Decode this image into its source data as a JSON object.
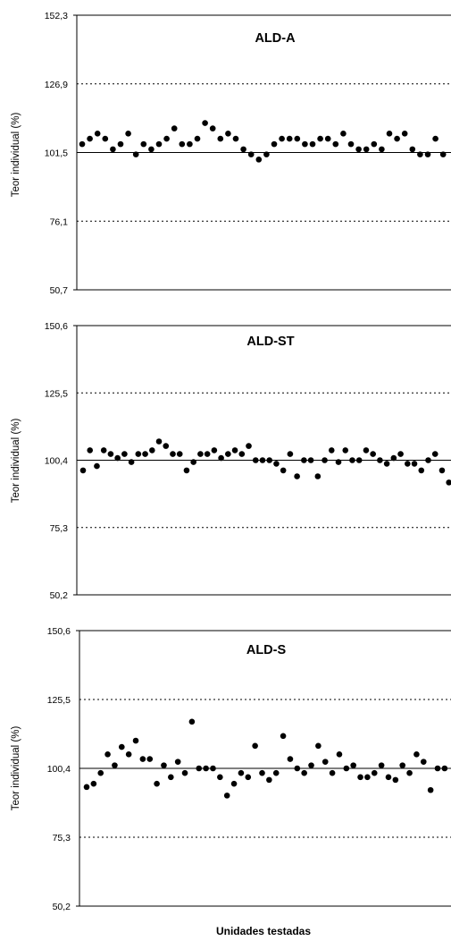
{
  "x_axis_label": "Unidades testadas",
  "chart_data": [
    {
      "type": "scatter",
      "title": "ALD-A",
      "ylabel": "Teor individual (%)",
      "yticks": [
        "152,3",
        "126,9",
        "101,5",
        "76,1",
        "50,7"
      ],
      "ylim": [
        50.7,
        152.3
      ],
      "reference_line": 101.5,
      "dotted_lines": [
        126.9,
        76.1
      ],
      "grid": false,
      "values": [
        104.6,
        106.6,
        108.5,
        106.6,
        102.7,
        104.6,
        108.5,
        100.8,
        104.6,
        102.7,
        104.6,
        106.6,
        110.4,
        104.6,
        104.6,
        106.6,
        112.4,
        110.4,
        106.6,
        108.5,
        106.6,
        102.7,
        100.8,
        98.9,
        100.8,
        104.6,
        106.6,
        106.6,
        106.6,
        104.6,
        104.6,
        106.6,
        106.6,
        104.6,
        108.5,
        104.6,
        102.7,
        102.7,
        104.6,
        102.7,
        108.5,
        106.6,
        108.5,
        102.7,
        100.8,
        100.8,
        106.6,
        100.8
      ]
    },
    {
      "type": "scatter",
      "title": "ALD-ST",
      "ylabel": "Teor individual (%)",
      "yticks": [
        "150,6",
        "125,5",
        "100,4",
        "75,3",
        "50,2"
      ],
      "ylim": [
        50.2,
        150.6
      ],
      "reference_line": 100.4,
      "dotted_lines": [
        125.5,
        75.3
      ],
      "grid": false,
      "values": [
        96.6,
        104.1,
        98.2,
        104.1,
        102.7,
        101.2,
        102.7,
        99.7,
        102.7,
        102.7,
        104.1,
        107.4,
        105.7,
        102.7,
        102.7,
        96.6,
        99.7,
        102.7,
        102.7,
        104.1,
        101.2,
        102.7,
        104.1,
        102.7,
        105.7,
        100.4,
        100.4,
        100.4,
        99.1,
        96.6,
        102.7,
        94.4,
        100.4,
        100.4,
        94.4,
        100.4,
        104.1,
        99.7,
        104.1,
        100.4,
        100.4,
        104.1,
        102.7,
        100.4,
        99.1,
        101.2,
        102.7,
        99.1,
        99.1,
        96.6,
        100.4,
        102.7,
        96.6,
        92.1,
        104.1,
        102.7,
        99.1,
        102.7,
        94.4,
        102.7
      ]
    },
    {
      "type": "scatter",
      "title": "ALD-S",
      "ylabel": "Teor individual (%)",
      "yticks": [
        "150,6",
        "125,5",
        "100,4",
        "75,3",
        "50,2"
      ],
      "ylim": [
        50.2,
        150.6
      ],
      "reference_line": 100.4,
      "dotted_lines": [
        125.5,
        75.3
      ],
      "grid": false,
      "values": [
        93.6,
        94.8,
        98.7,
        105.5,
        101.5,
        108.2,
        105.5,
        110.5,
        103.8,
        103.8,
        94.8,
        101.5,
        97.2,
        102.8,
        98.7,
        117.4,
        100.4,
        100.4,
        100.4,
        97.2,
        90.5,
        94.8,
        98.7,
        97.2,
        108.6,
        98.7,
        96.2,
        98.7,
        112.2,
        103.8,
        100.4,
        98.7,
        101.5,
        108.6,
        102.8,
        98.7,
        105.5,
        100.4,
        101.5,
        97.2,
        97.2,
        98.7,
        101.5,
        97.2,
        96.2,
        101.5,
        98.7,
        105.5,
        102.8,
        92.5,
        100.4,
        100.4
      ]
    }
  ]
}
